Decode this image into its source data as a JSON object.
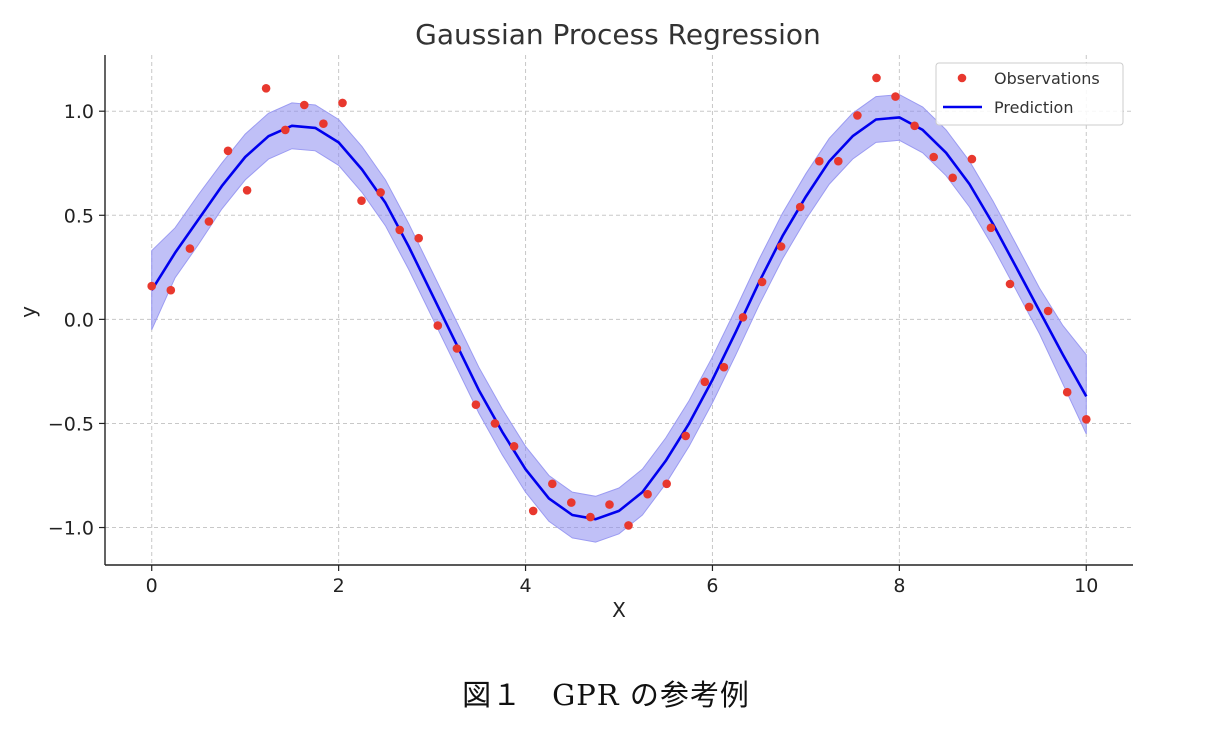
{
  "chart_data": {
    "type": "line",
    "title": "Gaussian Process Regression",
    "xlabel": "X",
    "ylabel": "y",
    "xlim": [
      -0.5,
      10.5
    ],
    "ylim": [
      -1.18,
      1.27
    ],
    "xticks": [
      0,
      2,
      4,
      6,
      8,
      10
    ],
    "yticks": [
      -1.0,
      -0.5,
      0.0,
      0.5,
      1.0
    ],
    "xtick_labels": [
      "0",
      "2",
      "4",
      "6",
      "8",
      "10"
    ],
    "ytick_labels": [
      "−1.0",
      "−0.5",
      "0.0",
      "0.5",
      "1.0"
    ],
    "grid": true,
    "legend_position": "top-right",
    "series": [
      {
        "name": "Observations",
        "kind": "scatter",
        "color": "#e8382e",
        "x": [
          0.0,
          0.204,
          0.408,
          0.612,
          0.816,
          1.02,
          1.224,
          1.429,
          1.633,
          1.837,
          2.041,
          2.245,
          2.449,
          2.653,
          2.857,
          3.061,
          3.265,
          3.469,
          3.673,
          3.878,
          4.082,
          4.286,
          4.49,
          4.694,
          4.898,
          5.102,
          5.306,
          5.51,
          5.714,
          5.918,
          6.122,
          6.327,
          6.531,
          6.735,
          6.939,
          7.143,
          7.347,
          7.551,
          7.755,
          7.959,
          8.163,
          8.367,
          8.571,
          8.776,
          8.98,
          9.184,
          9.388,
          9.592,
          9.796,
          10.0
        ],
        "y": [
          0.16,
          0.14,
          0.34,
          0.47,
          0.81,
          0.62,
          1.11,
          0.91,
          1.03,
          0.94,
          1.04,
          0.57,
          0.61,
          0.43,
          0.39,
          -0.03,
          -0.14,
          -0.41,
          -0.5,
          -0.61,
          -0.92,
          -0.79,
          -0.88,
          -0.95,
          -0.89,
          -0.99,
          -0.84,
          -0.79,
          -0.56,
          -0.3,
          -0.23,
          0.01,
          0.18,
          0.35,
          0.54,
          0.76,
          0.76,
          0.98,
          1.16,
          1.07,
          0.93,
          0.78,
          0.68,
          0.77,
          0.44,
          0.17,
          0.06,
          0.04,
          -0.35,
          -0.48
        ]
      },
      {
        "name": "Prediction",
        "kind": "line",
        "color": "#0000ee",
        "x": [
          0.0,
          0.25,
          0.5,
          0.75,
          1.0,
          1.25,
          1.5,
          1.75,
          2.0,
          2.25,
          2.5,
          2.75,
          3.0,
          3.25,
          3.5,
          3.75,
          4.0,
          4.25,
          4.5,
          4.75,
          5.0,
          5.25,
          5.5,
          5.75,
          6.0,
          6.25,
          6.5,
          6.75,
          7.0,
          7.25,
          7.5,
          7.75,
          8.0,
          8.25,
          8.5,
          8.75,
          9.0,
          9.25,
          9.5,
          9.75,
          10.0
        ],
        "y": [
          0.14,
          0.32,
          0.48,
          0.64,
          0.78,
          0.88,
          0.93,
          0.92,
          0.85,
          0.72,
          0.56,
          0.35,
          0.12,
          -0.11,
          -0.34,
          -0.54,
          -0.72,
          -0.86,
          -0.94,
          -0.96,
          -0.92,
          -0.83,
          -0.68,
          -0.5,
          -0.29,
          -0.06,
          0.18,
          0.4,
          0.59,
          0.76,
          0.88,
          0.96,
          0.97,
          0.91,
          0.8,
          0.65,
          0.46,
          0.25,
          0.04,
          -0.17,
          -0.37
        ]
      },
      {
        "name": "",
        "kind": "band",
        "color": "#8c8cf0",
        "x": [
          0.0,
          0.25,
          0.5,
          0.75,
          1.0,
          1.25,
          1.5,
          1.75,
          2.0,
          2.25,
          2.5,
          2.75,
          3.0,
          3.25,
          3.5,
          3.75,
          4.0,
          4.25,
          4.5,
          4.75,
          5.0,
          5.25,
          5.5,
          5.75,
          6.0,
          6.25,
          6.5,
          6.75,
          7.0,
          7.25,
          7.5,
          7.75,
          8.0,
          8.25,
          8.5,
          8.75,
          9.0,
          9.25,
          9.5,
          9.75,
          10.0
        ],
        "upper": [
          0.33,
          0.44,
          0.6,
          0.75,
          0.89,
          0.99,
          1.04,
          1.03,
          0.96,
          0.83,
          0.67,
          0.46,
          0.23,
          0.0,
          -0.23,
          -0.43,
          -0.61,
          -0.75,
          -0.83,
          -0.85,
          -0.81,
          -0.72,
          -0.57,
          -0.39,
          -0.18,
          0.05,
          0.29,
          0.51,
          0.7,
          0.87,
          0.99,
          1.07,
          1.08,
          1.02,
          0.91,
          0.76,
          0.57,
          0.36,
          0.15,
          -0.03,
          -0.17
        ],
        "lower": [
          -0.05,
          0.2,
          0.36,
          0.53,
          0.67,
          0.77,
          0.82,
          0.81,
          0.74,
          0.61,
          0.45,
          0.24,
          0.01,
          -0.22,
          -0.45,
          -0.65,
          -0.83,
          -0.97,
          -1.05,
          -1.07,
          -1.03,
          -0.94,
          -0.79,
          -0.61,
          -0.4,
          -0.17,
          0.07,
          0.29,
          0.48,
          0.65,
          0.77,
          0.85,
          0.86,
          0.8,
          0.69,
          0.54,
          0.35,
          0.14,
          -0.07,
          -0.31,
          -0.55
        ]
      }
    ]
  },
  "caption": "図１　GPR の参考例"
}
